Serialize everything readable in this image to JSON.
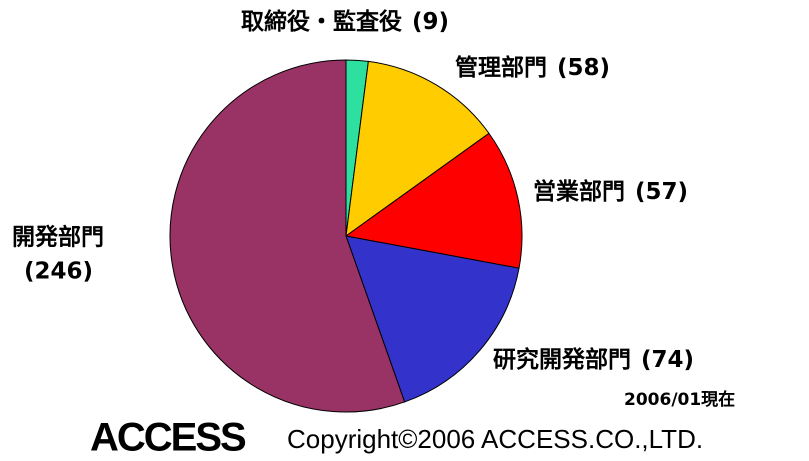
{
  "chart_data": {
    "type": "pie",
    "categories": [
      "取締役・監査役",
      "管理部門",
      "営業部門",
      "研究開発部門",
      "開発部門"
    ],
    "values": [
      9,
      58,
      57,
      74,
      246
    ],
    "value_labels": [
      "(9)",
      "(58)",
      "(57)",
      "(74)",
      "(246)"
    ],
    "colors": [
      "#2ee0a0",
      "#ffcc00",
      "#ff0000",
      "#3333cc",
      "#993366"
    ],
    "annotation": "2006/01現在",
    "logo": "ACCESS",
    "footer": "Copyright©2006 ACCESS.CO.,LTD."
  }
}
